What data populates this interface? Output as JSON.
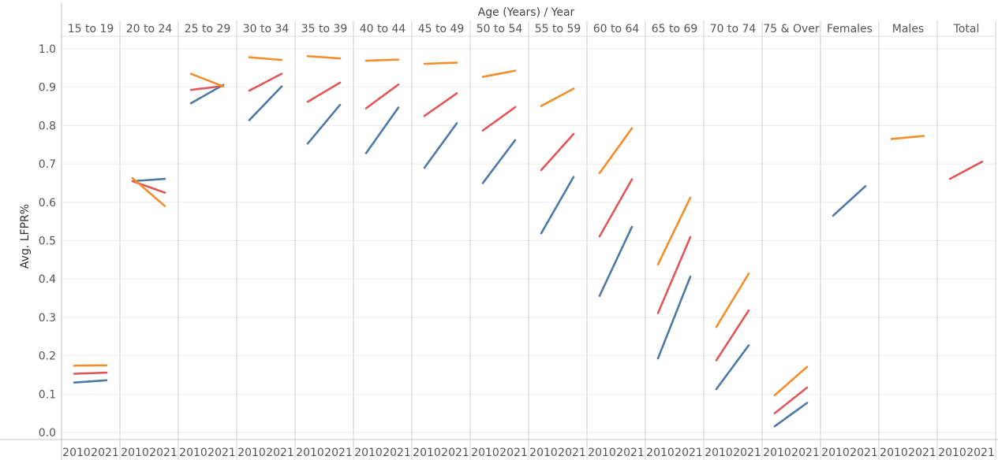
{
  "chart_data": {
    "type": "line",
    "header_title": "Age (Years) / Year",
    "ylabel": "Avg. LFPR%",
    "ylim": [
      0.0,
      1.0
    ],
    "y_ticks": [
      "0.0",
      "0.1",
      "0.2",
      "0.3",
      "0.4",
      "0.5",
      "0.6",
      "0.7",
      "0.8",
      "0.9",
      "1.0"
    ],
    "x_years": [
      "2010",
      "2021"
    ],
    "groups": [
      "15 to 19",
      "20 to 24",
      "25 to 29",
      "30 to 34",
      "35 to 39",
      "40 to 44",
      "45 to 49",
      "50 to 54",
      "55 to 59",
      "60 to 64",
      "65 to 69",
      "70 to 74",
      "75 & Over",
      "Females",
      "Males",
      "Total"
    ],
    "grid": true,
    "series": [
      {
        "color": "#4e79a7",
        "values": [
          [
            0.13,
            0.136
          ],
          [
            0.655,
            0.661
          ],
          [
            0.858,
            0.906
          ],
          [
            0.814,
            0.902
          ],
          [
            0.753,
            0.854
          ],
          [
            0.728,
            0.847
          ],
          [
            0.69,
            0.806
          ],
          [
            0.65,
            0.762
          ],
          [
            0.519,
            0.666
          ],
          [
            0.356,
            0.536
          ],
          [
            0.193,
            0.406
          ],
          [
            0.113,
            0.227
          ],
          [
            0.016,
            0.077
          ],
          [
            0.565,
            0.642
          ],
          null,
          null
        ]
      },
      {
        "color": "#e15759",
        "values": [
          [
            0.153,
            0.156
          ],
          [
            0.655,
            0.625
          ],
          [
            0.893,
            0.903
          ],
          [
            0.891,
            0.935
          ],
          [
            0.862,
            0.912
          ],
          [
            0.845,
            0.907
          ],
          [
            0.825,
            0.884
          ],
          [
            0.787,
            0.848
          ],
          [
            0.684,
            0.778
          ],
          [
            0.511,
            0.66
          ],
          [
            0.311,
            0.509
          ],
          [
            0.188,
            0.318
          ],
          [
            0.05,
            0.117
          ],
          null,
          null,
          [
            0.661,
            0.706
          ]
        ]
      },
      {
        "color": "#f28e2b",
        "values": [
          [
            0.174,
            0.175
          ],
          [
            0.663,
            0.59
          ],
          [
            0.935,
            0.902
          ],
          [
            0.978,
            0.971
          ],
          [
            0.981,
            0.975
          ],
          [
            0.969,
            0.972
          ],
          [
            0.961,
            0.964
          ],
          [
            0.927,
            0.943
          ],
          [
            0.851,
            0.896
          ],
          [
            0.676,
            0.793
          ],
          [
            0.438,
            0.612
          ],
          [
            0.275,
            0.414
          ],
          [
            0.097,
            0.171
          ],
          null,
          [
            0.765,
            0.773
          ],
          null
        ]
      }
    ]
  }
}
